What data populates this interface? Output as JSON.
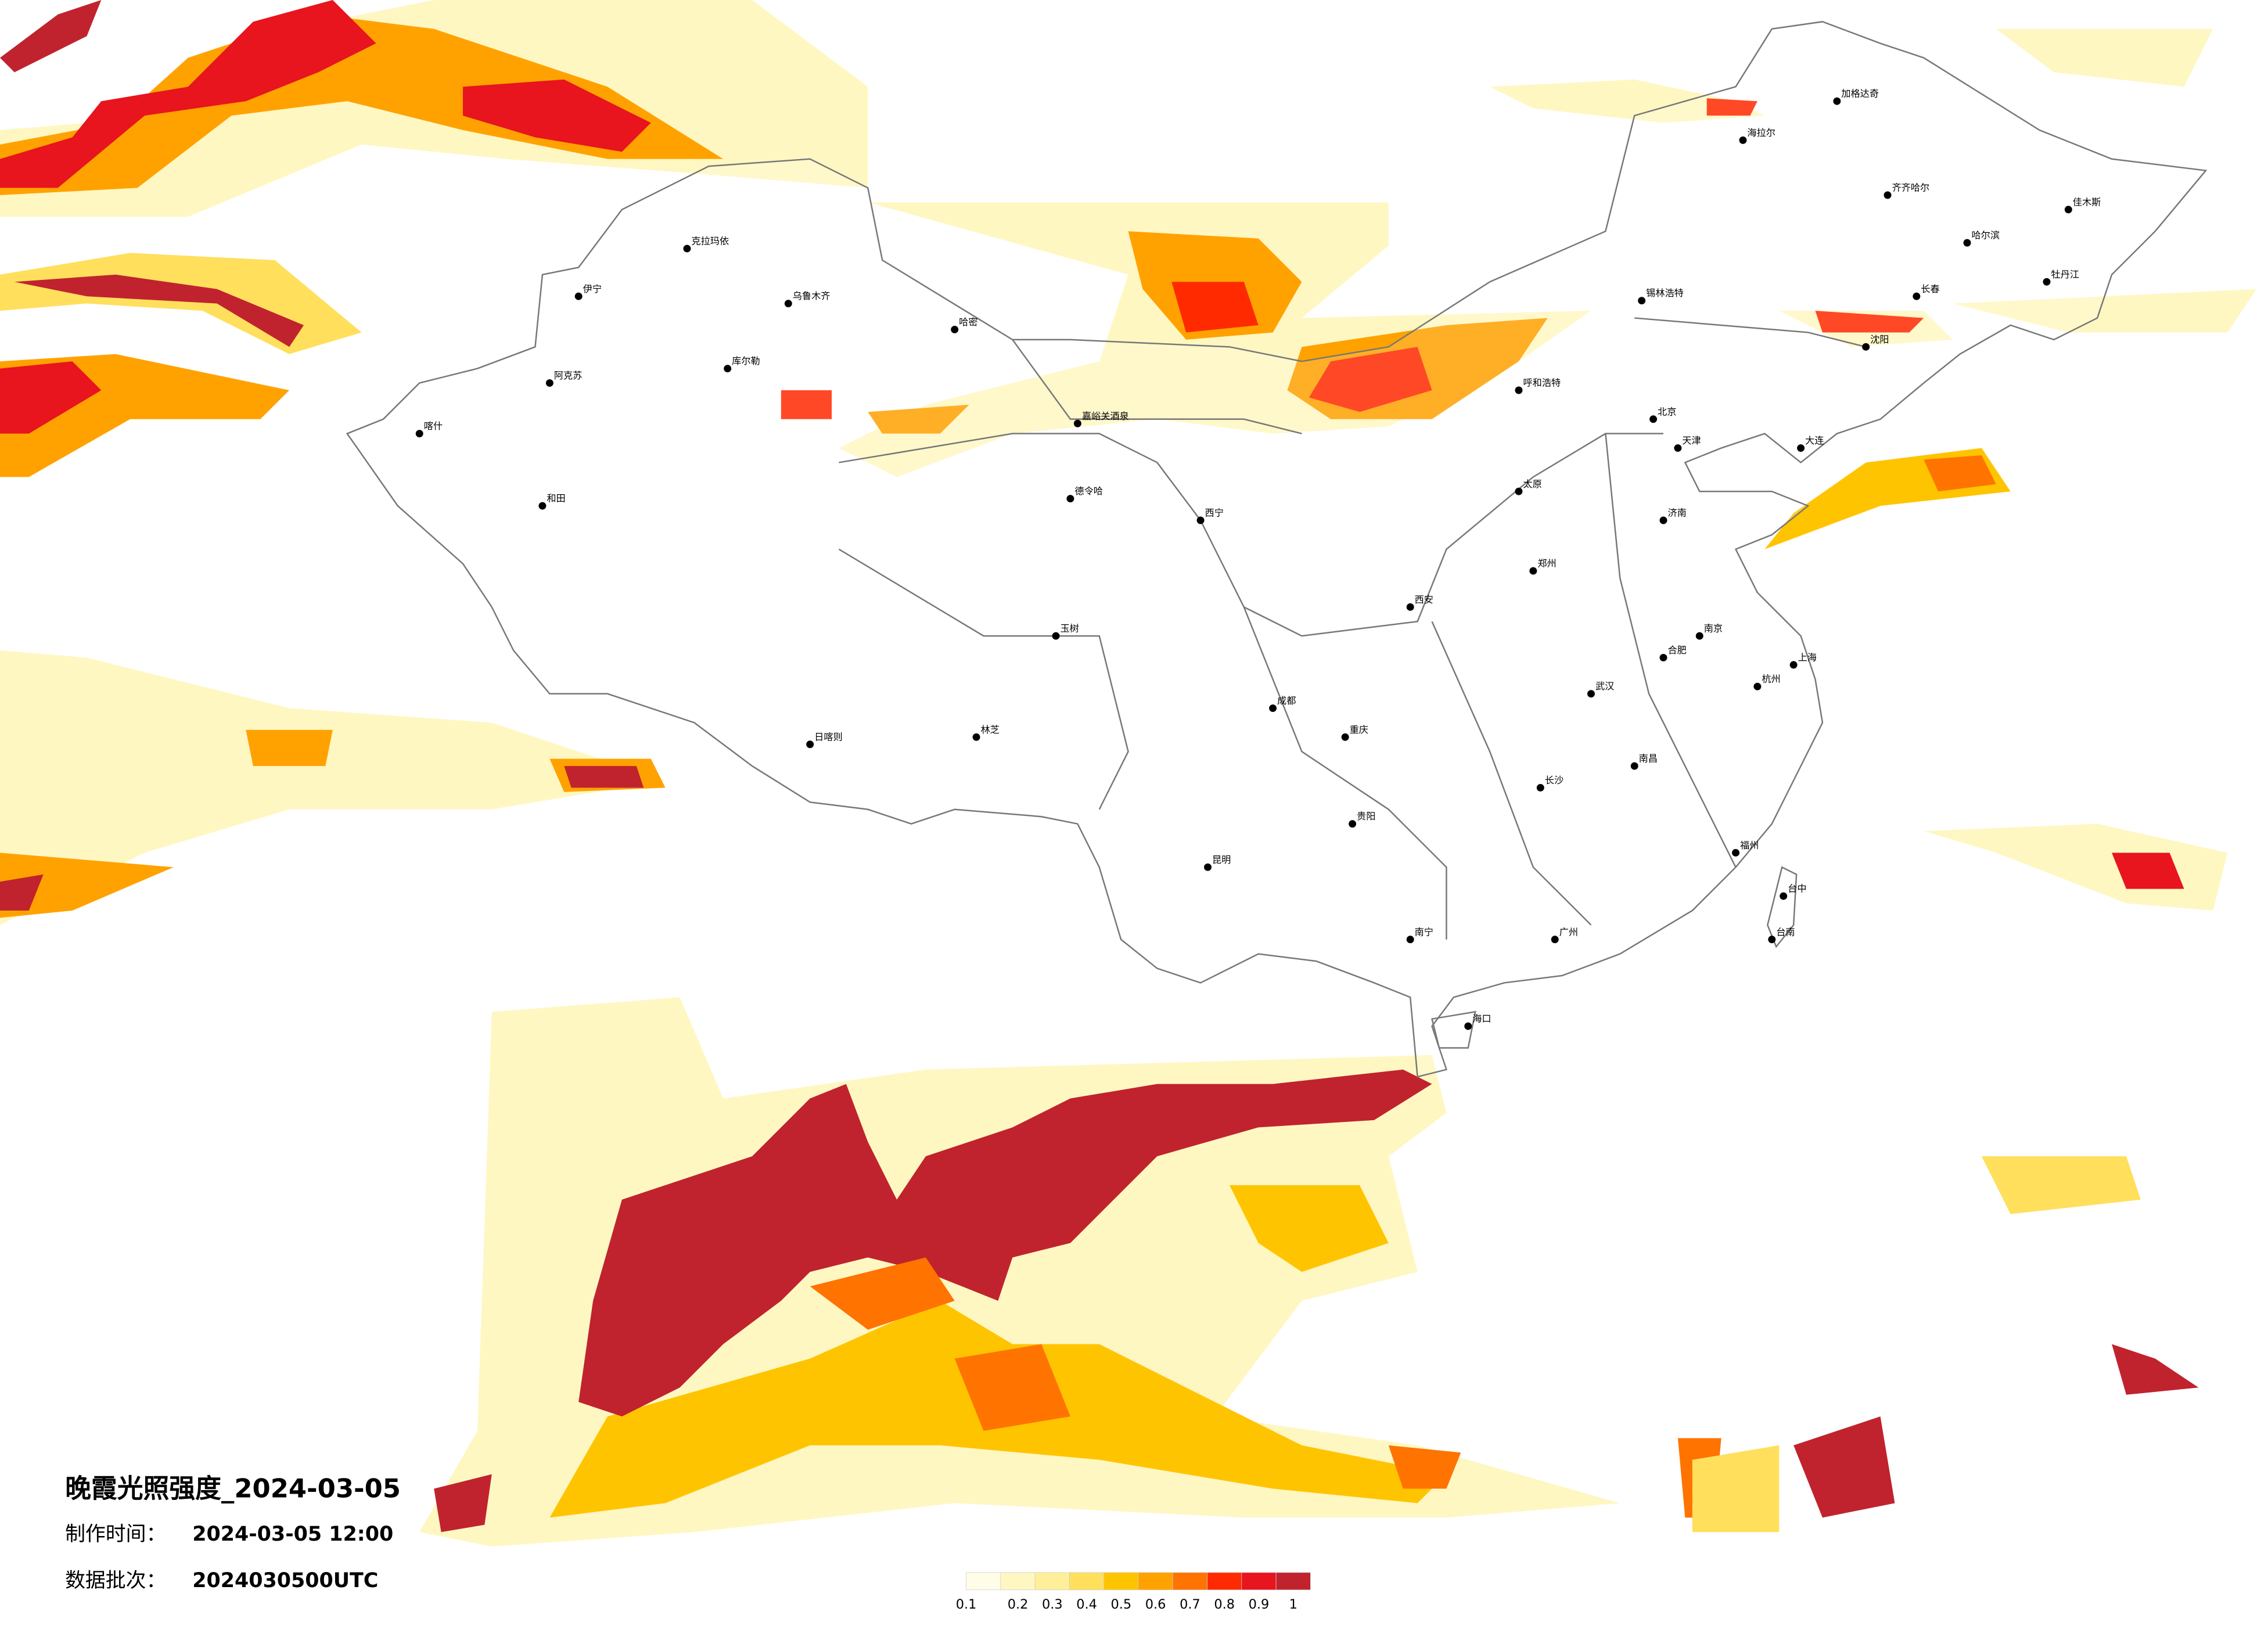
{
  "header": {
    "title": "晚霞光照强度_2024-03-05",
    "made_label": "制作时间：",
    "made_value": "2024-03-05 12:00",
    "batch_label": "数据批次：",
    "batch_value": "2024030500UTC"
  },
  "legend": {
    "ticks": [
      0.1,
      0.2,
      0.3,
      0.4,
      0.5,
      0.6,
      0.7,
      0.8,
      0.9,
      1
    ],
    "colors": [
      "#fffde8",
      "#fff7c2",
      "#ffef99",
      "#ffdf5c",
      "#ffc400",
      "#ffa200",
      "#ff7300",
      "#ff2a00",
      "#e8141e",
      "#c0232e"
    ]
  },
  "cities": [
    "克拉玛依",
    "伊宁",
    "阿克苏",
    "喀什",
    "和田",
    "库尔勒",
    "乌鲁木齐",
    "哈密",
    "嘉峪关酒泉",
    "德令哈",
    "玉树",
    "日喀则",
    "林芝",
    "海拉尔",
    "加格达奇",
    "齐齐哈尔",
    "哈尔滨",
    "佳木斯",
    "牡丹江",
    "长春",
    "沈阳",
    "锡林浩特",
    "呼和浩特",
    "北京",
    "天津",
    "大连",
    "济南",
    "太原",
    "郑州",
    "西安",
    "西宁",
    "成都",
    "重庆",
    "武汉",
    "南京",
    "合肥",
    "上海",
    "杭州",
    "长沙",
    "南昌",
    "福州",
    "贵阳",
    "昆明",
    "南宁",
    "广州",
    "海口",
    "台中",
    "台南"
  ]
}
